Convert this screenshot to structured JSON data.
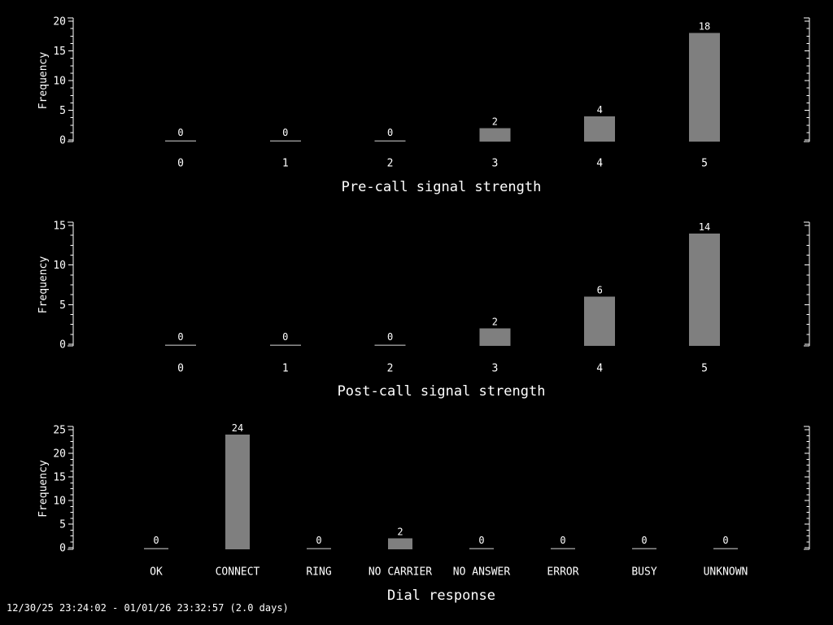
{
  "colors": {
    "background": "#000000",
    "bar_fill": "#7f7f7f",
    "zero_bar_line": "#8f8f8f",
    "axis": "#ffffff",
    "text": "#ffffff"
  },
  "footer": {
    "text": "12/30/25 23:24:02 - 01/01/26 23:32:57 (2.0 days)"
  },
  "chart_data": [
    {
      "type": "bar",
      "title": "Pre-call signal strength",
      "ylabel": "Frequency",
      "xlabel": "",
      "categories": [
        "0",
        "1",
        "2",
        "3",
        "4",
        "5"
      ],
      "values": [
        0,
        0,
        0,
        2,
        4,
        18
      ],
      "bar_value_labels": [
        "0",
        "0",
        "0",
        "2",
        "4",
        "18"
      ],
      "ylim": [
        0,
        20
      ],
      "ytick_step": 5,
      "ytick_labels": [
        "0",
        "5",
        "10",
        "15",
        "20"
      ],
      "grid": false,
      "legend": null,
      "right_axis_mirrored": true
    },
    {
      "type": "bar",
      "title": "Post-call signal strength",
      "ylabel": "Frequency",
      "xlabel": "",
      "categories": [
        "0",
        "1",
        "2",
        "3",
        "4",
        "5"
      ],
      "values": [
        0,
        0,
        0,
        2,
        6,
        14
      ],
      "bar_value_labels": [
        "0",
        "0",
        "0",
        "2",
        "6",
        "14"
      ],
      "ylim": [
        0,
        15
      ],
      "ytick_step": 5,
      "ytick_labels": [
        "0",
        "5",
        "10",
        "15"
      ],
      "grid": false,
      "legend": null,
      "right_axis_mirrored": true
    },
    {
      "type": "bar",
      "title": "Dial response",
      "ylabel": "Frequency",
      "xlabel": "",
      "categories": [
        "OK",
        "CONNECT",
        "RING",
        "NO CARRIER",
        "NO ANSWER",
        "ERROR",
        "BUSY",
        "UNKNOWN"
      ],
      "values": [
        0,
        24,
        0,
        2,
        0,
        0,
        0,
        0
      ],
      "bar_value_labels": [
        "0",
        "24",
        "0",
        "2",
        "0",
        "0",
        "0",
        "0"
      ],
      "ylim": [
        0,
        25
      ],
      "ytick_step": 5,
      "ytick_labels": [
        "0",
        "5",
        "10",
        "15",
        "20",
        "25"
      ],
      "grid": false,
      "legend": null,
      "right_axis_mirrored": true
    }
  ]
}
